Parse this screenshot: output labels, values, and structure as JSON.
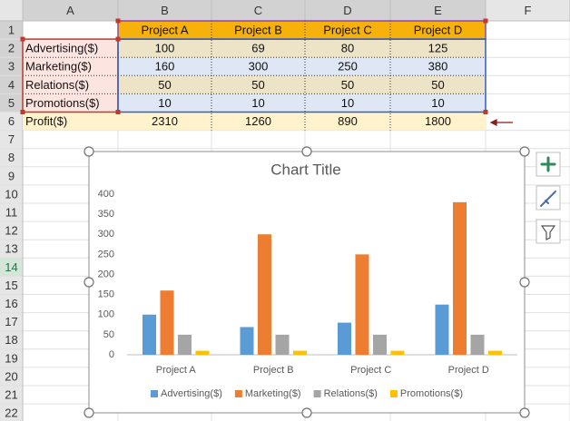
{
  "sheet": {
    "columns": [
      "A",
      "B",
      "C",
      "D",
      "E",
      "F"
    ],
    "row_numbers": [
      1,
      2,
      3,
      4,
      5,
      6,
      7,
      8,
      9,
      10,
      11,
      12,
      13,
      14,
      15,
      16,
      17,
      18,
      19,
      20,
      21,
      22
    ],
    "table": {
      "header": [
        "Project A",
        "Project B",
        "Project C",
        "Project D"
      ],
      "rows": [
        {
          "label": "Advertising($)",
          "values": [
            100,
            69,
            80,
            125
          ]
        },
        {
          "label": "Marketing($)",
          "values": [
            160,
            300,
            250,
            380
          ]
        },
        {
          "label": "Relations($)",
          "values": [
            50,
            50,
            50,
            50
          ]
        },
        {
          "label": "Promotions($)",
          "values": [
            10,
            10,
            10,
            10
          ]
        },
        {
          "label": "Profit($)",
          "values": [
            2310,
            1260,
            890,
            1800
          ]
        }
      ]
    }
  },
  "chart_data": {
    "type": "bar",
    "title": "Chart Title",
    "categories": [
      "Project A",
      "Project B",
      "Project C",
      "Project D"
    ],
    "series": [
      {
        "name": "Advertising($)",
        "color": "#5b9bd5",
        "values": [
          100,
          69,
          80,
          125
        ]
      },
      {
        "name": "Marketing($)",
        "color": "#ed7d31",
        "values": [
          160,
          300,
          250,
          380
        ]
      },
      {
        "name": "Relations($)",
        "color": "#a5a5a5",
        "values": [
          50,
          50,
          50,
          50
        ]
      },
      {
        "name": "Promotions($)",
        "color": "#ffc000",
        "values": [
          10,
          10,
          10,
          10
        ]
      }
    ],
    "ylim": [
      0,
      400
    ],
    "yticks": [
      0,
      50,
      100,
      150,
      200,
      250,
      300,
      350,
      400
    ],
    "grid": false,
    "legend": "bottom"
  }
}
